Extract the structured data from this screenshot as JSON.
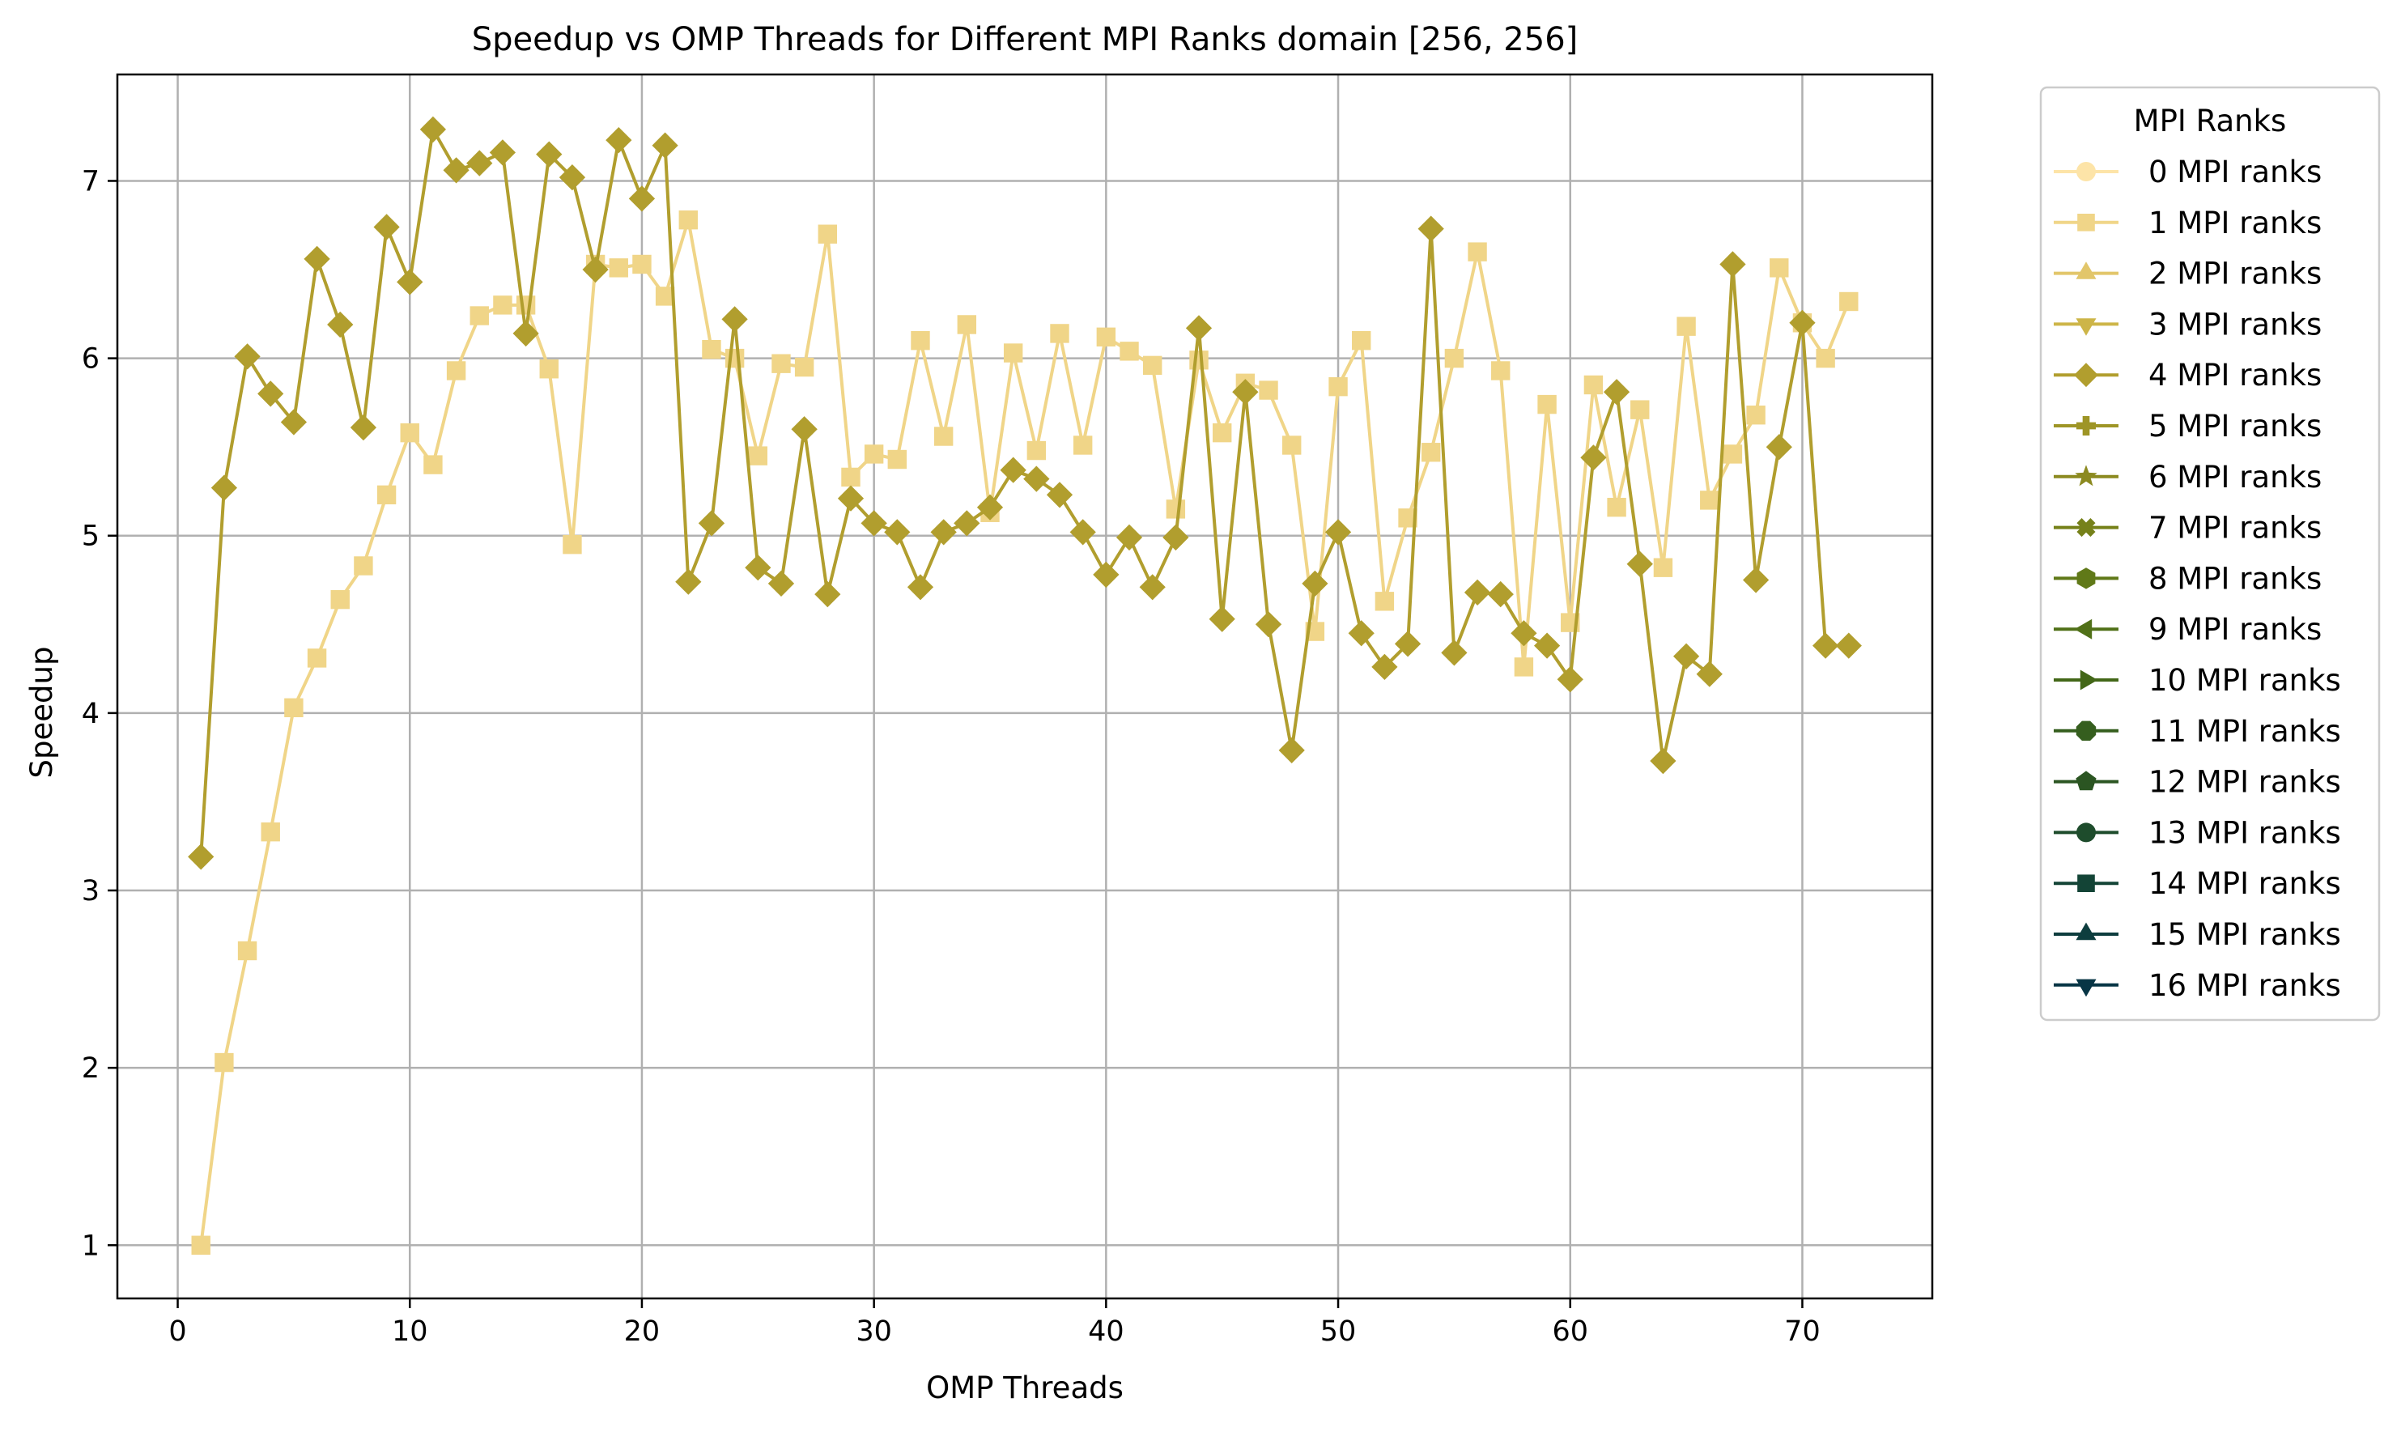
{
  "chart_data": {
    "type": "line",
    "title": "Speedup vs OMP Threads for Different MPI Ranks domain [256, 256]",
    "xlabel": "OMP Threads",
    "ylabel": "Speedup",
    "xlim": [
      -2.6,
      75.6
    ],
    "ylim": [
      0.7,
      7.6
    ],
    "xticks": [
      0,
      10,
      20,
      30,
      40,
      50,
      60,
      70
    ],
    "yticks": [
      1,
      2,
      3,
      4,
      5,
      6,
      7
    ],
    "grid": true,
    "legend": {
      "title": "MPI Ranks",
      "placement": "outside-right-top",
      "entries": [
        {
          "label": "0 MPI ranks",
          "color": "#fde4a8",
          "marker": "circle"
        },
        {
          "label": "1 MPI ranks",
          "color": "#f0d588",
          "marker": "square"
        },
        {
          "label": "2 MPI ranks",
          "color": "#e2c66a",
          "marker": "triangle-up"
        },
        {
          "label": "3 MPI ranks",
          "color": "#cdb548",
          "marker": "triangle-down"
        },
        {
          "label": "4 MPI ranks",
          "color": "#b19e2e",
          "marker": "diamond"
        },
        {
          "label": "5 MPI ranks",
          "color": "#9e9526",
          "marker": "plus"
        },
        {
          "label": "6 MPI ranks",
          "color": "#8c8a20",
          "marker": "star"
        },
        {
          "label": "7 MPI ranks",
          "color": "#76811a",
          "marker": "x"
        },
        {
          "label": "8 MPI ranks",
          "color": "#607918",
          "marker": "hexagon"
        },
        {
          "label": "9 MPI ranks",
          "color": "#507018",
          "marker": "triangle-left"
        },
        {
          "label": "10 MPI ranks",
          "color": "#436718",
          "marker": "triangle-right"
        },
        {
          "label": "11 MPI ranks",
          "color": "#355e1e",
          "marker": "octagon"
        },
        {
          "label": "12 MPI ranks",
          "color": "#2b5522",
          "marker": "pentagon"
        },
        {
          "label": "13 MPI ranks",
          "color": "#1e4c2c",
          "marker": "circle"
        },
        {
          "label": "14 MPI ranks",
          "color": "#134436",
          "marker": "square"
        },
        {
          "label": "15 MPI ranks",
          "color": "#0d3d3e",
          "marker": "triangle-up"
        },
        {
          "label": "16 MPI ranks",
          "color": "#073545",
          "marker": "triangle-down"
        }
      ]
    },
    "series": [
      {
        "name": "1 MPI ranks",
        "color": "#f0d588",
        "marker": "square",
        "x": [
          1,
          2,
          3,
          4,
          5,
          6,
          7,
          8,
          9,
          10,
          11,
          12,
          13,
          14,
          15,
          16,
          17,
          18,
          19,
          20,
          21,
          22,
          23,
          24,
          25,
          26,
          27,
          28,
          29,
          30,
          31,
          32,
          33,
          34,
          35,
          36,
          37,
          38,
          39,
          40,
          41,
          42,
          43,
          44,
          45,
          46,
          47,
          48,
          49,
          50,
          51,
          52,
          53,
          54,
          55,
          56,
          57,
          58,
          59,
          60,
          61,
          62,
          63,
          64,
          65,
          66,
          67,
          68,
          69,
          70,
          71,
          72
        ],
        "y": [
          1.0,
          2.03,
          2.66,
          3.33,
          4.03,
          4.31,
          4.64,
          4.83,
          5.23,
          5.58,
          5.4,
          5.93,
          6.24,
          6.3,
          6.3,
          5.94,
          4.95,
          6.53,
          6.51,
          6.53,
          6.35,
          6.78,
          6.05,
          6.0,
          5.45,
          5.97,
          5.95,
          6.7,
          5.33,
          5.46,
          5.43,
          6.1,
          5.56,
          6.19,
          5.13,
          6.03,
          5.48,
          6.14,
          5.51,
          6.12,
          6.04,
          5.96,
          5.15,
          5.99,
          5.58,
          5.86,
          5.82,
          5.51,
          4.46,
          5.84,
          6.1,
          4.63,
          5.1,
          5.47,
          6.0,
          6.6,
          5.93,
          4.26,
          5.74,
          4.51,
          5.85,
          5.16,
          5.71,
          4.82,
          6.18,
          5.2,
          5.46,
          5.68,
          6.51,
          6.2,
          6.0,
          6.32
        ]
      },
      {
        "name": "4 MPI ranks",
        "color": "#b19e2e",
        "marker": "diamond",
        "x": [
          1,
          2,
          3,
          4,
          5,
          6,
          7,
          8,
          9,
          10,
          11,
          12,
          13,
          14,
          15,
          16,
          17,
          18,
          19,
          20,
          21,
          22,
          23,
          24,
          25,
          26,
          27,
          28,
          29,
          30,
          31,
          32,
          33,
          34,
          35,
          36,
          37,
          38,
          39,
          40,
          41,
          42,
          43,
          44,
          45,
          46,
          47,
          48,
          49,
          50,
          51,
          52,
          53,
          54,
          55,
          56,
          57,
          58,
          59,
          60,
          61,
          62,
          63,
          64,
          65,
          66,
          67,
          68,
          69,
          70,
          71,
          72
        ],
        "y": [
          3.19,
          5.27,
          6.01,
          5.8,
          5.64,
          6.56,
          6.19,
          5.61,
          6.74,
          6.43,
          7.29,
          7.06,
          7.1,
          7.16,
          6.14,
          7.15,
          7.02,
          6.5,
          7.23,
          6.9,
          7.2,
          4.74,
          5.07,
          6.22,
          4.82,
          4.73,
          5.6,
          4.67,
          5.21,
          5.07,
          5.02,
          4.71,
          5.02,
          5.07,
          5.16,
          5.37,
          5.32,
          5.23,
          5.02,
          4.78,
          4.99,
          4.71,
          4.99,
          6.17,
          4.53,
          5.81,
          4.5,
          3.79,
          4.73,
          5.02,
          4.45,
          4.26,
          4.39,
          6.73,
          4.34,
          4.68,
          4.67,
          4.45,
          4.38,
          4.19,
          5.44,
          5.81,
          4.84,
          3.73,
          4.32,
          4.22,
          6.53,
          4.75,
          5.5,
          6.2,
          4.38,
          4.38
        ]
      }
    ]
  }
}
